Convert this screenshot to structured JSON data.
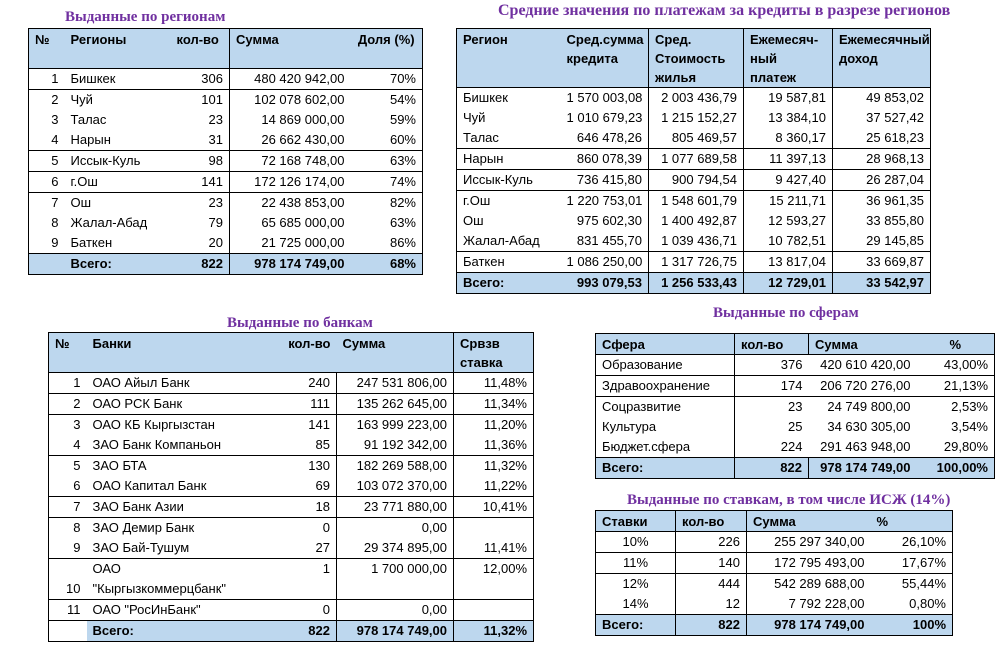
{
  "regions": {
    "title": "Выданные по регионам",
    "headers": [
      "№",
      "Регионы",
      "кол-во",
      "Сумма",
      "Доля (%)"
    ],
    "rows": [
      [
        "1",
        "Бишкек",
        "306",
        "480 420 942,00",
        "70%"
      ],
      [
        "2",
        "Чуй",
        "101",
        "102 078 602,00",
        "54%"
      ],
      [
        "3",
        "Талас",
        "23",
        "14 869 000,00",
        "59%"
      ],
      [
        "4",
        "Нарын",
        "31",
        "26 662 430,00",
        "60%"
      ],
      [
        "5",
        "Иссык-Куль",
        "98",
        "72 168 748,00",
        "63%"
      ],
      [
        "6",
        "г.Ош",
        "141",
        "172 126 174,00",
        "74%"
      ],
      [
        "7",
        "Ош",
        "23",
        "22 438 853,00",
        "82%"
      ],
      [
        "8",
        "Жалал-Абад",
        "79",
        "65 685 000,00",
        "63%"
      ],
      [
        "9",
        "Баткен",
        "20",
        "21 725 000,00",
        "86%"
      ]
    ],
    "total": [
      "",
      "Всего:",
      "822",
      "978 174 749,00",
      "68%"
    ]
  },
  "averages": {
    "title": "Средние значения по платежам за кредиты в разрезе регионов",
    "headers": [
      "Регион",
      "Сред.сумма кредита",
      "Сред. Стоимость жилья",
      "Ежемесяч-ный платеж",
      "Ежемесячный доход"
    ],
    "rows": [
      [
        "Бишкек",
        "1 570 003,08",
        "2 003 436,79",
        "19 587,81",
        "49 853,02"
      ],
      [
        "Чуй",
        "1 010 679,23",
        "1 215 152,27",
        "13 384,10",
        "37 527,42"
      ],
      [
        "Талас",
        "646 478,26",
        "805 469,57",
        "8 360,17",
        "25 618,23"
      ],
      [
        "Нарын",
        "860 078,39",
        "1 077 689,58",
        "11 397,13",
        "28 968,13"
      ],
      [
        "Иссык-Куль",
        "736 415,80",
        "900 794,54",
        "9 427,40",
        "26 287,04"
      ],
      [
        "г.Ош",
        "1 220 753,01",
        "1 548 601,79",
        "15 211,71",
        "36 961,35"
      ],
      [
        "Ош",
        "975 602,30",
        "1 400 492,87",
        "12 593,27",
        "33 855,80"
      ],
      [
        "Жалал-Абад",
        "831 455,70",
        "1 039 436,71",
        "10 782,51",
        "29 145,85"
      ],
      [
        "Баткен",
        "1 086 250,00",
        "1 317 726,75",
        "13 817,04",
        "33 669,87"
      ]
    ],
    "total": [
      "Всего:",
      "993 079,53",
      "1 256 533,43",
      "12 729,01",
      "33 542,97"
    ]
  },
  "banks": {
    "title": "Выданные по банкам",
    "headers": [
      "№",
      "Банки",
      "кол-во",
      "Сумма",
      "Срвзв ставка"
    ],
    "rows": [
      [
        "1",
        "ОАО Айыл Банк",
        "240",
        "247 531 806,00",
        "11,48%"
      ],
      [
        "2",
        "ОАО РСК Банк",
        "111",
        "135 262 645,00",
        "11,34%"
      ],
      [
        "3",
        "ОАО КБ Кыргызстан",
        "141",
        "163 999 223,00",
        "11,20%"
      ],
      [
        "4",
        "ЗАО Банк Компаньон",
        "85",
        "91 192 342,00",
        "11,36%"
      ],
      [
        "5",
        "ЗАО БТА",
        "130",
        "182 269 588,00",
        "11,32%"
      ],
      [
        "6",
        "ОАО Капитал Банк",
        "69",
        "103 072 370,00",
        "11,22%"
      ],
      [
        "7",
        "ЗАО Банк Азии",
        "18",
        "23 771 880,00",
        "10,41%"
      ],
      [
        "8",
        "ЗАО Демир Банк",
        "0",
        "0,00",
        ""
      ],
      [
        "9",
        "ЗАО Бай-Тушум",
        "27",
        "29 374 895,00",
        "11,41%"
      ],
      [
        "10",
        "ОАО \"Кыргызкоммерцбанк\"",
        "1",
        "1 700 000,00",
        "12,00%"
      ],
      [
        "11",
        "ОАО \"РосИнБанк\"",
        "0",
        "0,00",
        ""
      ]
    ],
    "total": [
      "",
      "Всего:",
      "822",
      "978 174 749,00",
      "11,32%"
    ]
  },
  "spheres": {
    "title": "Выданные по сферам",
    "headers": [
      "Сфера",
      "кол-во",
      "Сумма",
      "%"
    ],
    "rows": [
      [
        "Образование",
        "376",
        "420 610 420,00",
        "43,00%"
      ],
      [
        "Здравоохранение",
        "174",
        "206 720 276,00",
        "21,13%"
      ],
      [
        "Соцразвитие",
        "23",
        "24 749 800,00",
        "2,53%"
      ],
      [
        "Культура",
        "25",
        "34 630 305,00",
        "3,54%"
      ],
      [
        "Бюджет.сфера",
        "224",
        "291 463 948,00",
        "29,80%"
      ]
    ],
    "total": [
      "Всего:",
      "822",
      "978 174 749,00",
      "100,00%"
    ]
  },
  "rates": {
    "title": "Выданные по ставкам, в том числе ИСЖ (14%)",
    "headers": [
      "Ставки",
      "кол-во",
      "Сумма",
      "%"
    ],
    "rows": [
      [
        "10%",
        "226",
        "255 297 340,00",
        "26,10%"
      ],
      [
        "11%",
        "140",
        "172 795 493,00",
        "17,67%"
      ],
      [
        "12%",
        "444",
        "542 289 688,00",
        "55,44%"
      ],
      [
        "14%",
        "12",
        "7 792 228,00",
        "0,80%"
      ]
    ],
    "total": [
      "Всего:",
      "822",
      "978 174 749,00",
      "100%"
    ]
  },
  "colors": {
    "header_bg": "#bdd7ee",
    "title": "#7030a0"
  }
}
